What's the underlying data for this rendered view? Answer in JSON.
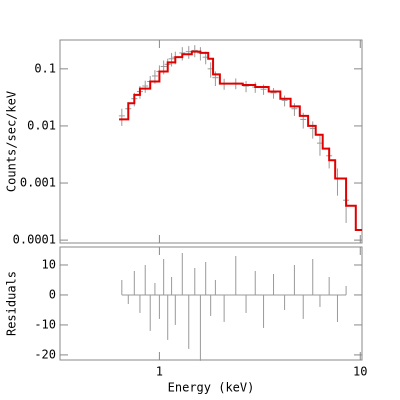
{
  "chart_data": [
    {
      "type": "line",
      "ylabel": "Counts/sec/keV",
      "log_x": true,
      "log_y": true,
      "xlim": [
        0.32,
        10.2
      ],
      "ylim": [
        8.9e-05,
        0.32
      ],
      "yticks": [
        0.1,
        0.01,
        0.001,
        0.0001
      ],
      "series": [
        {
          "color": "#999999",
          "style": "errorbar",
          "x": [
            0.65,
            0.7,
            0.75,
            0.8,
            0.85,
            0.9,
            0.95,
            1.0,
            1.05,
            1.1,
            1.15,
            1.2,
            1.3,
            1.4,
            1.5,
            1.6,
            1.7,
            1.8,
            1.9,
            2.1,
            2.4,
            2.7,
            3.0,
            3.3,
            3.7,
            4.2,
            4.7,
            5.2,
            5.8,
            6.3,
            7.0,
            7.7,
            8.5
          ],
          "values": [
            0.015,
            0.02,
            0.03,
            0.04,
            0.05,
            0.06,
            0.075,
            0.09,
            0.11,
            0.12,
            0.15,
            0.16,
            0.19,
            0.2,
            0.21,
            0.19,
            0.16,
            0.1,
            0.07,
            0.055,
            0.056,
            0.05,
            0.048,
            0.044,
            0.038,
            0.028,
            0.02,
            0.013,
            0.009,
            0.005,
            0.003,
            0.0012,
            0.0005
          ],
          "errors": [
            0.005,
            0.006,
            0.008,
            0.01,
            0.012,
            0.015,
            0.02,
            0.025,
            0.03,
            0.03,
            0.04,
            0.04,
            0.05,
            0.05,
            0.05,
            0.05,
            0.04,
            0.03,
            0.02,
            0.012,
            0.012,
            0.011,
            0.01,
            0.009,
            0.008,
            0.006,
            0.005,
            0.004,
            0.003,
            0.002,
            0.0012,
            0.0006,
            0.0003
          ]
        },
        {
          "color": "#e00000",
          "style": "step",
          "x": [
            0.63,
            0.7,
            0.75,
            0.8,
            0.9,
            1.0,
            1.1,
            1.2,
            1.3,
            1.45,
            1.6,
            1.75,
            1.85,
            2.0,
            2.3,
            2.6,
            3.0,
            3.5,
            4.0,
            4.5,
            5.0,
            5.5,
            6.0,
            6.5,
            7.0,
            7.5,
            8.5,
            9.5,
            10.2
          ],
          "values": [
            0.013,
            0.025,
            0.035,
            0.045,
            0.06,
            0.09,
            0.13,
            0.16,
            0.18,
            0.2,
            0.19,
            0.15,
            0.08,
            0.055,
            0.055,
            0.052,
            0.048,
            0.04,
            0.03,
            0.022,
            0.015,
            0.01,
            0.007,
            0.004,
            0.0025,
            0.0012,
            0.0004,
            0.00015,
            0.00015
          ]
        }
      ]
    },
    {
      "type": "residual",
      "xlabel": "Energy (keV)",
      "ylabel": "Residuals",
      "log_x": true,
      "xlim": [
        0.32,
        10.2
      ],
      "ylim": [
        -21.7,
        16
      ],
      "xticks": [
        1,
        10
      ],
      "yticks": [
        -20,
        -10,
        0,
        10
      ],
      "series": [
        {
          "color": "#999999",
          "x": [
            0.65,
            0.7,
            0.75,
            0.8,
            0.85,
            0.9,
            0.95,
            1.0,
            1.05,
            1.1,
            1.15,
            1.2,
            1.3,
            1.4,
            1.5,
            1.6,
            1.7,
            1.8,
            1.9,
            2.1,
            2.4,
            2.7,
            3.0,
            3.3,
            3.7,
            4.2,
            4.7,
            5.2,
            5.8,
            6.3,
            7.0,
            7.7,
            8.5
          ],
          "values": [
            5,
            -3,
            8,
            -6,
            10,
            -12,
            4,
            -8,
            12,
            -15,
            6,
            -10,
            14,
            -18,
            9,
            -22,
            11,
            -7,
            5,
            -9,
            13,
            -6,
            8,
            -11,
            7,
            -5,
            10,
            -8,
            12,
            -4,
            6,
            -9,
            3
          ]
        }
      ]
    }
  ]
}
